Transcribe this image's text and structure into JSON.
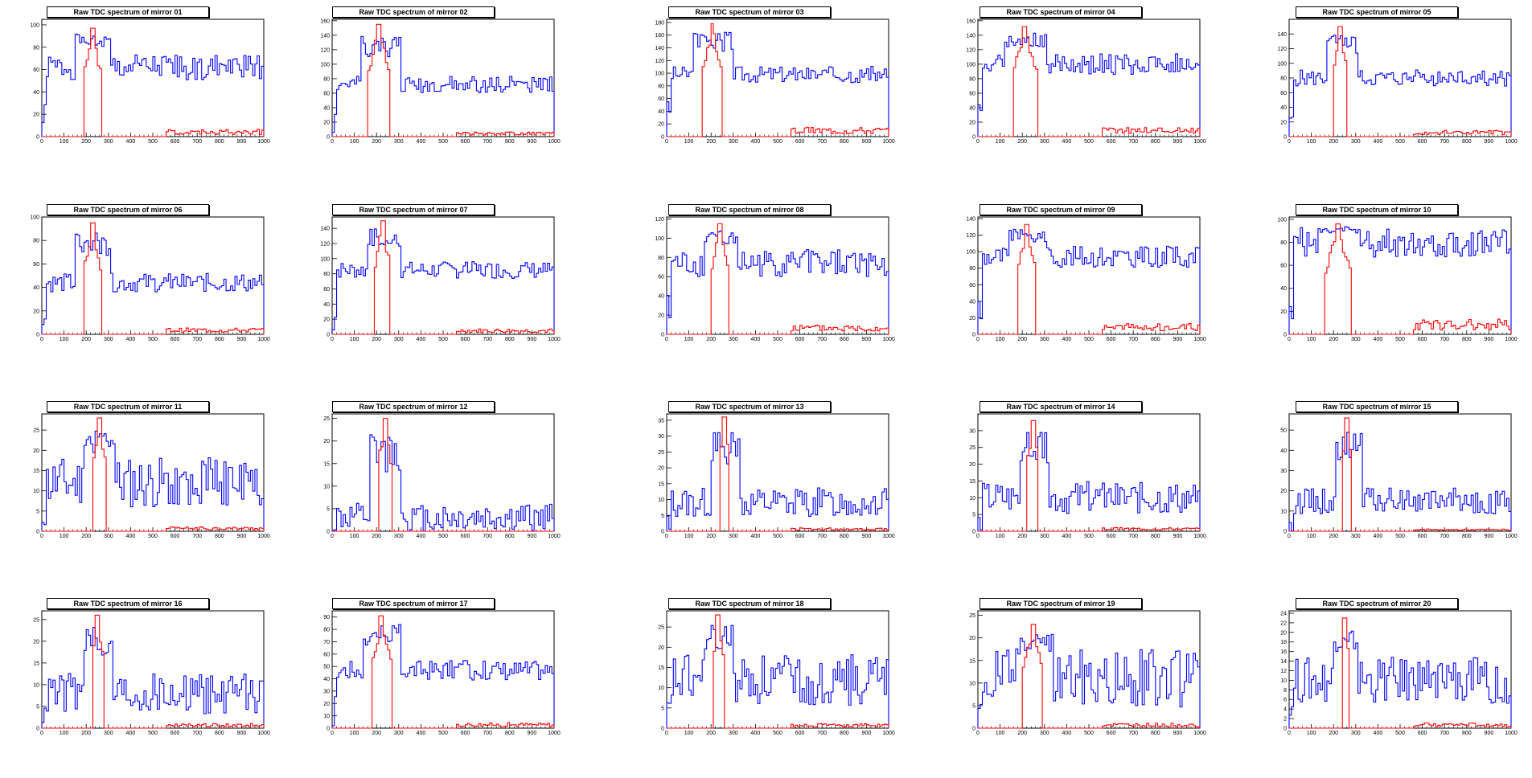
{
  "colors": {
    "series_main": "#0000ff",
    "series_peak": "#ff0000",
    "axis": "#000000",
    "background": "#ffffff"
  },
  "chart_data": [
    {
      "title": "Raw TDC spectrum of mirror 01",
      "type": "line",
      "xlim": [
        0,
        1000
      ],
      "ylim": [
        0,
        105
      ],
      "yticks": [
        0,
        20,
        40,
        60,
        80,
        100
      ],
      "xticks": [
        0,
        100,
        200,
        300,
        400,
        500,
        600,
        700,
        800,
        900,
        1000
      ],
      "peak": {
        "start": 190,
        "end": 265,
        "height": 97
      },
      "base": 62,
      "noise": 7,
      "red_tail": 6,
      "seed": 1,
      "series": [
        {
          "color": "series_main"
        },
        {
          "color": "series_peak"
        }
      ]
    },
    {
      "title": "Raw TDC spectrum of mirror 02",
      "type": "line",
      "xlim": [
        0,
        1000
      ],
      "ylim": [
        0,
        162
      ],
      "yticks": [
        0,
        20,
        40,
        60,
        80,
        100,
        120,
        140,
        160
      ],
      "xticks": [
        0,
        100,
        200,
        300,
        400,
        500,
        600,
        700,
        800,
        900,
        1000
      ],
      "peak": {
        "start": 165,
        "end": 260,
        "height": 155
      },
      "base": 72,
      "noise": 7,
      "red_tail": 6,
      "seed": 2,
      "series": [
        {
          "color": "series_main"
        },
        {
          "color": "series_peak"
        }
      ]
    },
    {
      "title": "Raw TDC spectrum of mirror 03",
      "type": "line",
      "xlim": [
        0,
        1000
      ],
      "ylim": [
        0,
        185
      ],
      "yticks": [
        0,
        20,
        40,
        60,
        80,
        100,
        120,
        140,
        160,
        180
      ],
      "xticks": [
        0,
        100,
        200,
        300,
        400,
        500,
        600,
        700,
        800,
        900,
        1000
      ],
      "peak": {
        "start": 160,
        "end": 250,
        "height": 178
      },
      "base": 98,
      "noise": 8,
      "red_tail": 14,
      "seed": 3,
      "series": [
        {
          "color": "series_main"
        },
        {
          "color": "series_peak"
        }
      ]
    },
    {
      "title": "Raw TDC spectrum of mirror 04",
      "type": "line",
      "xlim": [
        0,
        1000
      ],
      "ylim": [
        0,
        162
      ],
      "yticks": [
        0,
        20,
        40,
        60,
        80,
        100,
        120,
        140,
        160
      ],
      "xticks": [
        0,
        100,
        200,
        300,
        400,
        500,
        600,
        700,
        800,
        900,
        1000
      ],
      "peak": {
        "start": 160,
        "end": 265,
        "height": 152
      },
      "base": 100,
      "noise": 9,
      "red_tail": 12,
      "seed": 4,
      "series": [
        {
          "color": "series_main"
        },
        {
          "color": "series_peak"
        }
      ]
    },
    {
      "title": "Raw TDC spectrum of mirror 05",
      "type": "line",
      "xlim": [
        0,
        1000
      ],
      "ylim": [
        0,
        160
      ],
      "yticks": [
        0,
        20,
        40,
        60,
        80,
        100,
        120,
        140
      ],
      "xticks": [
        0,
        100,
        200,
        300,
        400,
        500,
        600,
        700,
        800,
        900,
        1000
      ],
      "peak": {
        "start": 205,
        "end": 260,
        "height": 150
      },
      "base": 80,
      "noise": 7,
      "red_tail": 8,
      "seed": 5,
      "series": [
        {
          "color": "series_main"
        },
        {
          "color": "series_peak"
        }
      ]
    },
    {
      "title": "Raw TDC spectrum of mirror 06",
      "type": "line",
      "xlim": [
        0,
        1000
      ],
      "ylim": [
        0,
        100
      ],
      "yticks": [
        0,
        20,
        40,
        60,
        80,
        100
      ],
      "xticks": [
        0,
        100,
        200,
        300,
        400,
        500,
        600,
        700,
        800,
        900,
        1000
      ],
      "peak": {
        "start": 190,
        "end": 265,
        "height": 95
      },
      "base": 44,
      "noise": 5,
      "red_tail": 5,
      "seed": 6,
      "series": [
        {
          "color": "series_main"
        },
        {
          "color": "series_peak"
        }
      ]
    },
    {
      "title": "Raw TDC spectrum of mirror 07",
      "type": "line",
      "xlim": [
        0,
        1000
      ],
      "ylim": [
        0,
        155
      ],
      "yticks": [
        0,
        20,
        40,
        60,
        80,
        100,
        120,
        140
      ],
      "xticks": [
        0,
        100,
        200,
        300,
        400,
        500,
        600,
        700,
        800,
        900,
        1000
      ],
      "peak": {
        "start": 195,
        "end": 260,
        "height": 150
      },
      "base": 85,
      "noise": 7,
      "red_tail": 7,
      "seed": 7,
      "series": [
        {
          "color": "series_main"
        },
        {
          "color": "series_peak"
        }
      ]
    },
    {
      "title": "Raw TDC spectrum of mirror 08",
      "type": "line",
      "xlim": [
        0,
        1000
      ],
      "ylim": [
        0,
        122
      ],
      "yticks": [
        0,
        20,
        40,
        60,
        80,
        100,
        120
      ],
      "xticks": [
        0,
        100,
        200,
        300,
        400,
        500,
        600,
        700,
        800,
        900,
        1000
      ],
      "peak": {
        "start": 205,
        "end": 275,
        "height": 115
      },
      "base": 74,
      "noise": 9,
      "red_tail": 9,
      "seed": 8,
      "series": [
        {
          "color": "series_main"
        },
        {
          "color": "series_peak"
        }
      ]
    },
    {
      "title": "Raw TDC spectrum of mirror 09",
      "type": "line",
      "xlim": [
        0,
        1000
      ],
      "ylim": [
        0,
        142
      ],
      "yticks": [
        0,
        20,
        40,
        60,
        80,
        100,
        120,
        140
      ],
      "xticks": [
        0,
        100,
        200,
        300,
        400,
        500,
        600,
        700,
        800,
        900,
        1000
      ],
      "peak": {
        "start": 180,
        "end": 260,
        "height": 133
      },
      "base": 94,
      "noise": 8,
      "red_tail": 12,
      "seed": 9,
      "series": [
        {
          "color": "series_main"
        },
        {
          "color": "series_peak"
        }
      ]
    },
    {
      "title": "Raw TDC spectrum of mirror 10",
      "type": "line",
      "xlim": [
        0,
        1000
      ],
      "ylim": [
        0,
        102
      ],
      "yticks": [
        0,
        20,
        40,
        60,
        80,
        100
      ],
      "xticks": [
        0,
        100,
        200,
        300,
        400,
        500,
        600,
        700,
        800,
        900,
        1000
      ],
      "peak": {
        "start": 165,
        "end": 275,
        "height": 96
      },
      "base": 80,
      "noise": 8,
      "red_tail": 12,
      "seed": 10,
      "series": [
        {
          "color": "series_main"
        },
        {
          "color": "series_peak"
        }
      ]
    },
    {
      "title": "Raw TDC spectrum of mirror 11",
      "type": "line",
      "xlim": [
        0,
        1000
      ],
      "ylim": [
        0,
        29
      ],
      "yticks": [
        0,
        5,
        10,
        15,
        20,
        25
      ],
      "xticks": [
        0,
        100,
        200,
        300,
        400,
        500,
        600,
        700,
        800,
        900,
        1000
      ],
      "peak": {
        "start": 230,
        "end": 285,
        "height": 28
      },
      "base": 12,
      "noise": 4,
      "red_tail": 1,
      "seed": 11,
      "series": [
        {
          "color": "series_main"
        },
        {
          "color": "series_peak"
        }
      ]
    },
    {
      "title": "Raw TDC spectrum of mirror 12",
      "type": "line",
      "xlim": [
        0,
        1000
      ],
      "ylim": [
        0,
        26
      ],
      "yticks": [
        0,
        5,
        10,
        15,
        20,
        25
      ],
      "xticks": [
        0,
        100,
        200,
        300,
        400,
        500,
        600,
        700,
        800,
        900,
        1000
      ],
      "peak": {
        "start": 210,
        "end": 265,
        "height": 25
      },
      "base": 3,
      "noise": 2,
      "red_tail": 0,
      "seed": 12,
      "series": [
        {
          "color": "series_main"
        },
        {
          "color": "series_peak"
        }
      ]
    },
    {
      "title": "Raw TDC spectrum of mirror 13",
      "type": "line",
      "xlim": [
        0,
        1000
      ],
      "ylim": [
        0,
        37
      ],
      "yticks": [
        0,
        5,
        10,
        15,
        20,
        25,
        30,
        35
      ],
      "xticks": [
        0,
        100,
        200,
        300,
        400,
        500,
        600,
        700,
        800,
        900,
        1000
      ],
      "peak": {
        "start": 240,
        "end": 280,
        "height": 36
      },
      "base": 9,
      "noise": 3,
      "red_tail": 1,
      "seed": 13,
      "series": [
        {
          "color": "series_main"
        },
        {
          "color": "series_peak"
        }
      ]
    },
    {
      "title": "Raw TDC spectrum of mirror 14",
      "type": "line",
      "xlim": [
        0,
        1000
      ],
      "ylim": [
        0,
        35
      ],
      "yticks": [
        0,
        5,
        10,
        15,
        20,
        25,
        30
      ],
      "xticks": [
        0,
        100,
        200,
        300,
        400,
        500,
        600,
        700,
        800,
        900,
        1000
      ],
      "peak": {
        "start": 225,
        "end": 270,
        "height": 33
      },
      "base": 10,
      "noise": 3,
      "red_tail": 1,
      "seed": 14,
      "series": [
        {
          "color": "series_main"
        },
        {
          "color": "series_peak"
        }
      ]
    },
    {
      "title": "Raw TDC spectrum of mirror 15",
      "type": "line",
      "xlim": [
        0,
        1000
      ],
      "ylim": [
        0,
        58
      ],
      "yticks": [
        0,
        10,
        20,
        30,
        40,
        50
      ],
      "xticks": [
        0,
        100,
        200,
        300,
        400,
        500,
        600,
        700,
        800,
        900,
        1000
      ],
      "peak": {
        "start": 245,
        "end": 280,
        "height": 56
      },
      "base": 15,
      "noise": 4,
      "red_tail": 1,
      "seed": 15,
      "series": [
        {
          "color": "series_main"
        },
        {
          "color": "series_peak"
        }
      ]
    },
    {
      "title": "Raw TDC spectrum of mirror 16",
      "type": "line",
      "xlim": [
        0,
        1000
      ],
      "ylim": [
        0,
        27
      ],
      "yticks": [
        0,
        5,
        10,
        15,
        20,
        25
      ],
      "xticks": [
        0,
        100,
        200,
        300,
        400,
        500,
        600,
        700,
        800,
        900,
        1000
      ],
      "peak": {
        "start": 230,
        "end": 275,
        "height": 26
      },
      "base": 8,
      "noise": 3,
      "red_tail": 1,
      "seed": 16,
      "series": [
        {
          "color": "series_main"
        },
        {
          "color": "series_peak"
        }
      ]
    },
    {
      "title": "Raw TDC spectrum of mirror 17",
      "type": "line",
      "xlim": [
        0,
        1000
      ],
      "ylim": [
        0,
        95
      ],
      "yticks": [
        0,
        10,
        20,
        30,
        40,
        50,
        60,
        70,
        80,
        90
      ],
      "xticks": [
        0,
        100,
        200,
        300,
        400,
        500,
        600,
        700,
        800,
        900,
        1000
      ],
      "peak": {
        "start": 180,
        "end": 265,
        "height": 91
      },
      "base": 47,
      "noise": 5,
      "red_tail": 4,
      "seed": 17,
      "series": [
        {
          "color": "series_main"
        },
        {
          "color": "series_peak"
        }
      ]
    },
    {
      "title": "Raw TDC spectrum of mirror 18",
      "type": "line",
      "xlim": [
        0,
        1000
      ],
      "ylim": [
        0,
        29
      ],
      "yticks": [
        0,
        5,
        10,
        15,
        20,
        25
      ],
      "xticks": [
        0,
        100,
        200,
        300,
        400,
        500,
        600,
        700,
        800,
        900,
        1000
      ],
      "peak": {
        "start": 210,
        "end": 255,
        "height": 28
      },
      "base": 12,
      "noise": 4,
      "red_tail": 1,
      "seed": 18,
      "series": [
        {
          "color": "series_main"
        },
        {
          "color": "series_peak"
        }
      ]
    },
    {
      "title": "Raw TDC spectrum of mirror 19",
      "type": "line",
      "xlim": [
        0,
        1000
      ],
      "ylim": [
        0,
        26
      ],
      "yticks": [
        0,
        5,
        10,
        15,
        20,
        25
      ],
      "xticks": [
        0,
        100,
        200,
        300,
        400,
        500,
        600,
        700,
        800,
        900,
        1000
      ],
      "peak": {
        "start": 205,
        "end": 290,
        "height": 23
      },
      "base": 11,
      "noise": 4,
      "red_tail": 1,
      "seed": 19,
      "series": [
        {
          "color": "series_main"
        },
        {
          "color": "series_peak"
        }
      ]
    },
    {
      "title": "Raw TDC spectrum of mirror 20",
      "type": "line",
      "xlim": [
        0,
        1000
      ],
      "ylim": [
        0,
        24.5
      ],
      "yticks": [
        0,
        2,
        4,
        6,
        8,
        10,
        12,
        14,
        16,
        18,
        20,
        22,
        24
      ],
      "xticks": [
        0,
        100,
        200,
        300,
        400,
        500,
        600,
        700,
        800,
        900,
        1000
      ],
      "peak": {
        "start": 240,
        "end": 265,
        "height": 23
      },
      "base": 10,
      "noise": 3,
      "red_tail": 1,
      "seed": 20,
      "series": [
        {
          "color": "series_main"
        },
        {
          "color": "series_peak"
        }
      ]
    }
  ]
}
